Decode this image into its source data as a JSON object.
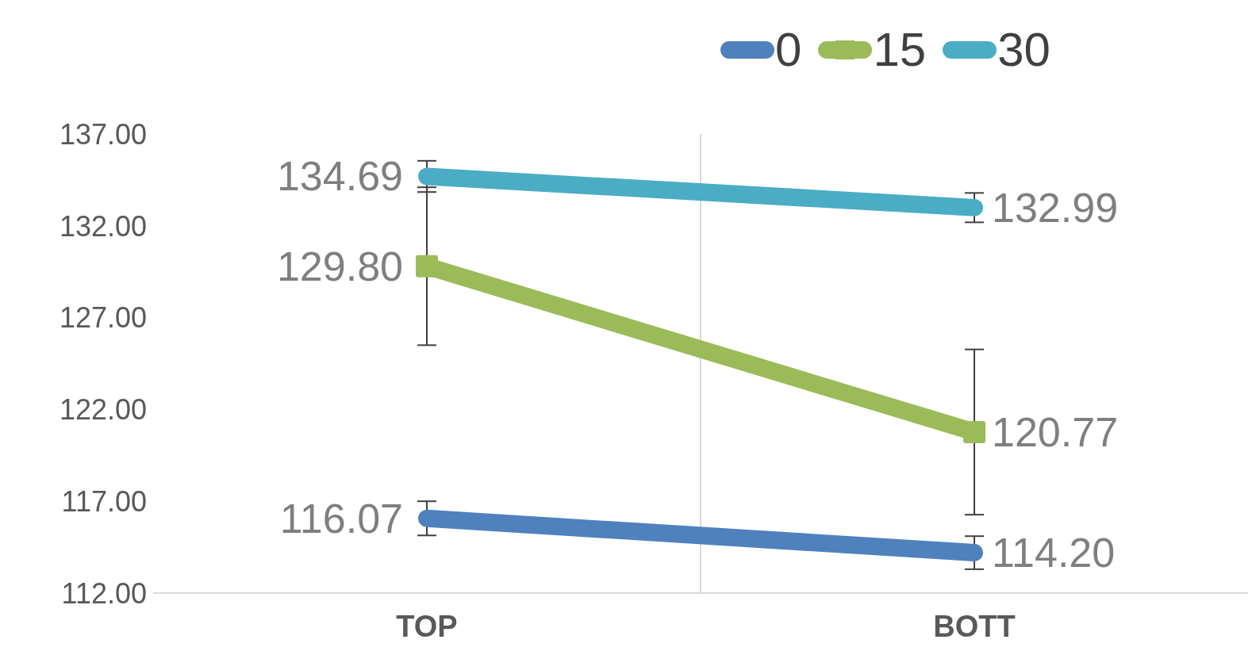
{
  "chart_data": {
    "type": "line",
    "categories": [
      "TOP",
      "BOTT"
    ],
    "series": [
      {
        "name": "0",
        "color": "#4f81bd",
        "values": [
          116.07,
          114.2
        ],
        "value_labels": [
          "116.07",
          "114.20"
        ],
        "errors": [
          0.93,
          0.9
        ]
      },
      {
        "name": "15",
        "color": "#9bbb59",
        "values": [
          129.8,
          120.77
        ],
        "value_labels": [
          "129.80",
          "120.77"
        ],
        "errors": [
          4.3,
          4.5
        ],
        "marker": "square"
      },
      {
        "name": "30",
        "color": "#4bacc6",
        "values": [
          134.69,
          132.99
        ],
        "value_labels": [
          "134.69",
          "132.99"
        ],
        "errors": [
          0.85,
          0.8
        ]
      }
    ],
    "ylim": [
      112,
      137
    ],
    "yticks": [
      {
        "value": 112,
        "label": "112.00"
      },
      {
        "value": 117,
        "label": "117.00"
      },
      {
        "value": 122,
        "label": "122.00"
      },
      {
        "value": 127,
        "label": "127.00"
      },
      {
        "value": 132,
        "label": "132.00"
      },
      {
        "value": 137,
        "label": "137.00"
      }
    ],
    "grid": "x",
    "legend": "top"
  }
}
